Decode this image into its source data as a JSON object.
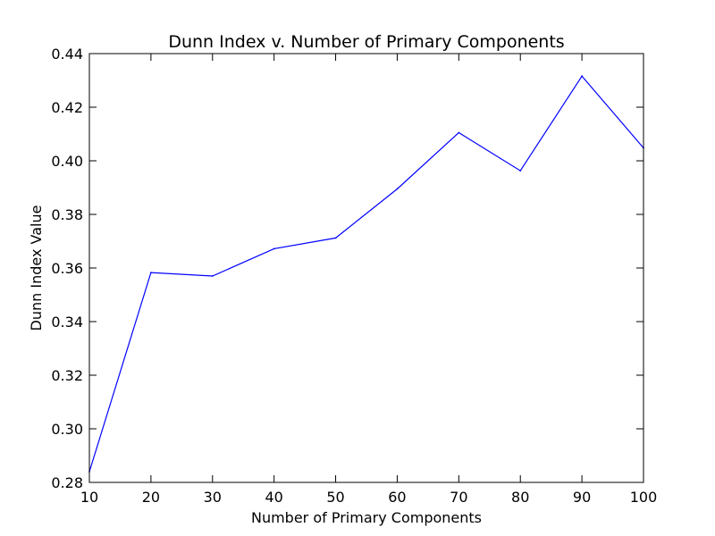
{
  "chart_data": {
    "type": "line",
    "title": "Dunn Index v. Number of Primary Components",
    "xlabel": "Number of Primary Components",
    "ylabel": "Dunn Index Value",
    "xlim": [
      10,
      100
    ],
    "ylim": [
      0.28,
      0.44
    ],
    "x_ticks": [
      "10",
      "20",
      "30",
      "40",
      "50",
      "60",
      "70",
      "80",
      "90",
      "100"
    ],
    "y_ticks": [
      "0.28",
      "0.30",
      "0.32",
      "0.34",
      "0.36",
      "0.38",
      "0.40",
      "0.42",
      "0.44"
    ],
    "grid": false,
    "legend": "none",
    "series": [
      {
        "color": "#0000ff",
        "x": [
          10,
          20,
          30,
          40,
          50,
          60,
          70,
          80,
          90,
          100
        ],
        "values": [
          0.284,
          0.3583,
          0.357,
          0.3672,
          0.3712,
          0.3895,
          0.4105,
          0.3963,
          0.4316,
          0.4048
        ]
      }
    ]
  }
}
